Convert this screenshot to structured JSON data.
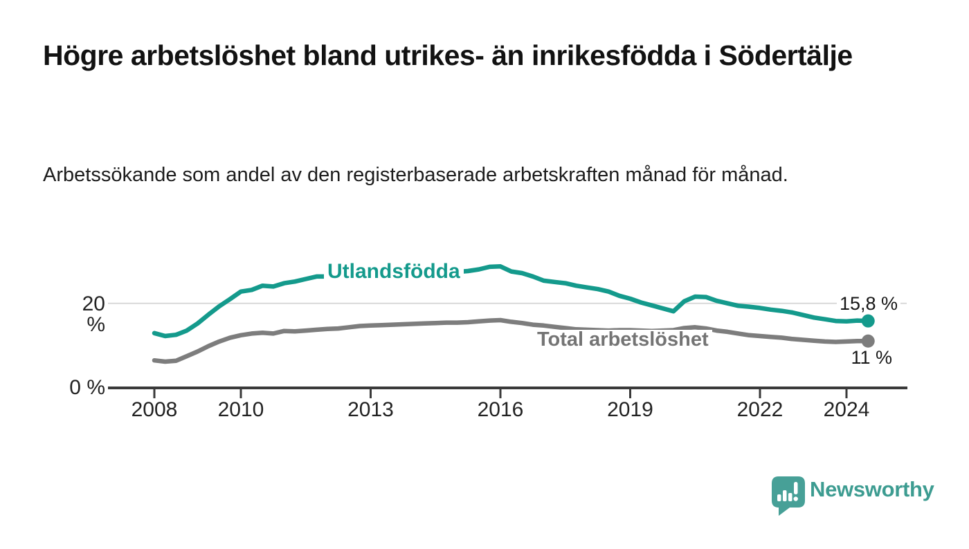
{
  "chart_data": {
    "type": "line",
    "title": "Högre arbetslöshet bland utrikes- än inrikesfödda i Södertälje",
    "subtitle": "Arbetssökande som andel av den registerbaserade arbetskraften månad för månad.",
    "unit": "%",
    "x_start": 2008,
    "x_step": 0.25,
    "x_end_approx": 2024.5,
    "ylim": [
      0,
      32
    ],
    "grid": "horizontal-only",
    "legend_position": "inline-labels",
    "x_ticks": [
      {
        "year": 2008,
        "label": "2008"
      },
      {
        "year": 2010,
        "label": "2010"
      },
      {
        "year": 2013,
        "label": "2013"
      },
      {
        "year": 2016,
        "label": "2016"
      },
      {
        "year": 2019,
        "label": "2019"
      },
      {
        "year": 2022,
        "label": "2022"
      },
      {
        "year": 2024,
        "label": "2024"
      }
    ],
    "y_ticks": [
      {
        "value": 20,
        "label": "20 %",
        "gridline": true
      },
      {
        "value": 0,
        "label": "0 %",
        "gridline": false
      }
    ],
    "series": [
      {
        "id": "utlandsfodda",
        "name": "Utlandsfödda",
        "color": "#149a8c",
        "label_color": "#149a8c",
        "end_label": "15,8 %",
        "end_value": 15.8,
        "values": [
          12.9,
          12.2,
          12.5,
          13.5,
          15.2,
          17.3,
          19.3,
          21.0,
          22.8,
          23.2,
          24.2,
          24.0,
          24.8,
          25.2,
          25.8,
          26.4,
          26.4,
          26.2,
          26.4,
          26.6,
          26.5,
          26.7,
          26.9,
          27.0,
          27.1,
          27.2,
          27.3,
          27.4,
          27.5,
          27.7,
          28.1,
          28.7,
          28.8,
          27.6,
          27.2,
          26.4,
          25.4,
          25.1,
          24.8,
          24.2,
          23.8,
          23.4,
          22.8,
          21.8,
          21.1,
          20.2,
          19.5,
          18.8,
          18.1,
          20.5,
          21.6,
          21.5,
          20.6,
          20.0,
          19.4,
          19.2,
          18.9,
          18.5,
          18.2,
          17.8,
          17.2,
          16.6,
          16.2,
          15.8,
          15.7,
          15.9,
          15.8
        ]
      },
      {
        "id": "total-arbetsloshet",
        "name": "Total arbetslöshet",
        "color": "#7d7d7d",
        "label_color": "#747474",
        "end_label": "11 %",
        "end_value": 11.0,
        "values": [
          6.4,
          6.1,
          6.3,
          7.4,
          8.5,
          9.8,
          10.9,
          11.8,
          12.4,
          12.8,
          13.0,
          12.8,
          13.4,
          13.3,
          13.5,
          13.7,
          13.9,
          14.0,
          14.3,
          14.6,
          14.7,
          14.8,
          14.9,
          15.0,
          15.1,
          15.2,
          15.3,
          15.4,
          15.4,
          15.5,
          15.7,
          15.9,
          16.0,
          15.6,
          15.3,
          14.9,
          14.7,
          14.4,
          14.1,
          13.8,
          13.7,
          13.6,
          13.5,
          13.6,
          13.6,
          13.5,
          13.4,
          13.5,
          13.6,
          14.1,
          14.3,
          14.0,
          13.5,
          13.2,
          12.8,
          12.4,
          12.2,
          12.0,
          11.8,
          11.5,
          11.3,
          11.1,
          10.9,
          10.8,
          10.9,
          11.0,
          11.0
        ]
      }
    ]
  },
  "brand": {
    "name": "Newsworthy",
    "text_color": "#3d9c91",
    "icon": "newsworthy-speech-bubble-chart-icon",
    "icon_color": "#47a097"
  },
  "colors": {
    "text": "#121212",
    "axis": "#3a3a3a",
    "gridline": "#d9d9d9",
    "background": "#ffffff"
  }
}
